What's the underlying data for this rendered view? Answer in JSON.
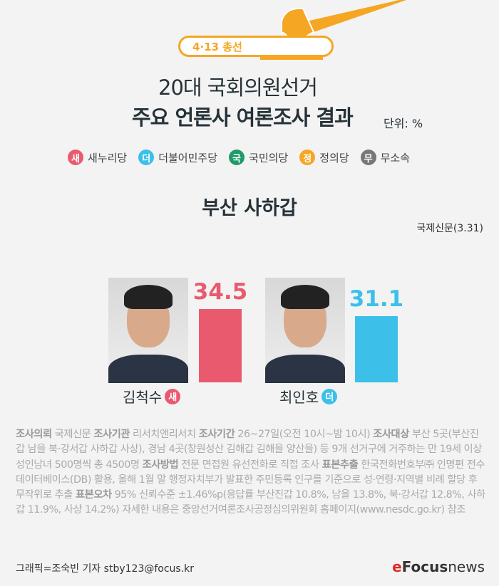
{
  "header": {
    "badge": "4·13 총선",
    "title_line1": "20대 국회의원선거",
    "title_line2": "주요 언론사 여론조사 결과",
    "unit": "단위: %"
  },
  "legend": [
    {
      "symbol": "새",
      "label": "새누리당",
      "color": "#ea5a6f"
    },
    {
      "symbol": "더",
      "label": "더불어민주당",
      "color": "#3cc0ea"
    },
    {
      "symbol": "국",
      "label": "국민의당",
      "color": "#1f9a68"
    },
    {
      "symbol": "정",
      "label": "정의당",
      "color": "#f5a623"
    },
    {
      "symbol": "무",
      "label": "무소속",
      "color": "#777777"
    }
  ],
  "region": "부산 사하갑",
  "source": "국제신문(3.31)",
  "chart_data": {
    "type": "bar",
    "categories": [
      "김척수",
      "최인호"
    ],
    "parties": [
      "새",
      "더"
    ],
    "values": [
      34.5,
      31.1
    ],
    "colors": [
      "#ea5a6f",
      "#3cc0ea"
    ]
  },
  "notes": [
    {
      "k": "조사의뢰",
      "v": " 국제신문 "
    },
    {
      "k": "조사기관",
      "v": " 리서치앤리서치 "
    },
    {
      "k": "조사기간",
      "v": " 26~27일(오전 10시~밤 10시) "
    },
    {
      "k": "조사대상",
      "v": " 부산 5곳(부산진갑 남을 북·강서갑 사하갑 사상), 경남 4곳(창원성산 김해갑 김해을 양산을) 등 9개 선거구에 거주하는 만 19세 이상 성인남녀 500명씩 총 4500명 "
    },
    {
      "k": "조사방법",
      "v": " 전문 면접원 유선전화로 직접 조사 "
    },
    {
      "k": "표본추출",
      "v": " 한국전화번호부㈜ 인명편 전수 데이터베이스(DB) 활용, 올해 1월 말 행정자치부가 발표한 주민등록 인구를 기준으로 성·연령·지역별 비례 할당 후 무작위로 추출 "
    },
    {
      "k": "표본오차",
      "v": " 95% 신뢰수준 ±1.46%p(응답률 부산진갑 10.8%, 남을 13.8%, 북·강서갑 12.8%, 사하갑 11.9%, 사상 14.2%) 자세한 내용은 중앙선거여론조사공정심의위원회 홈페이지(www.nesdc.go.kr) 참조"
    }
  ],
  "credit": "그래픽=조숙빈 기자 stby123@focus.kr",
  "logo": {
    "e": "e",
    "text": "Focus",
    "news": "news"
  }
}
